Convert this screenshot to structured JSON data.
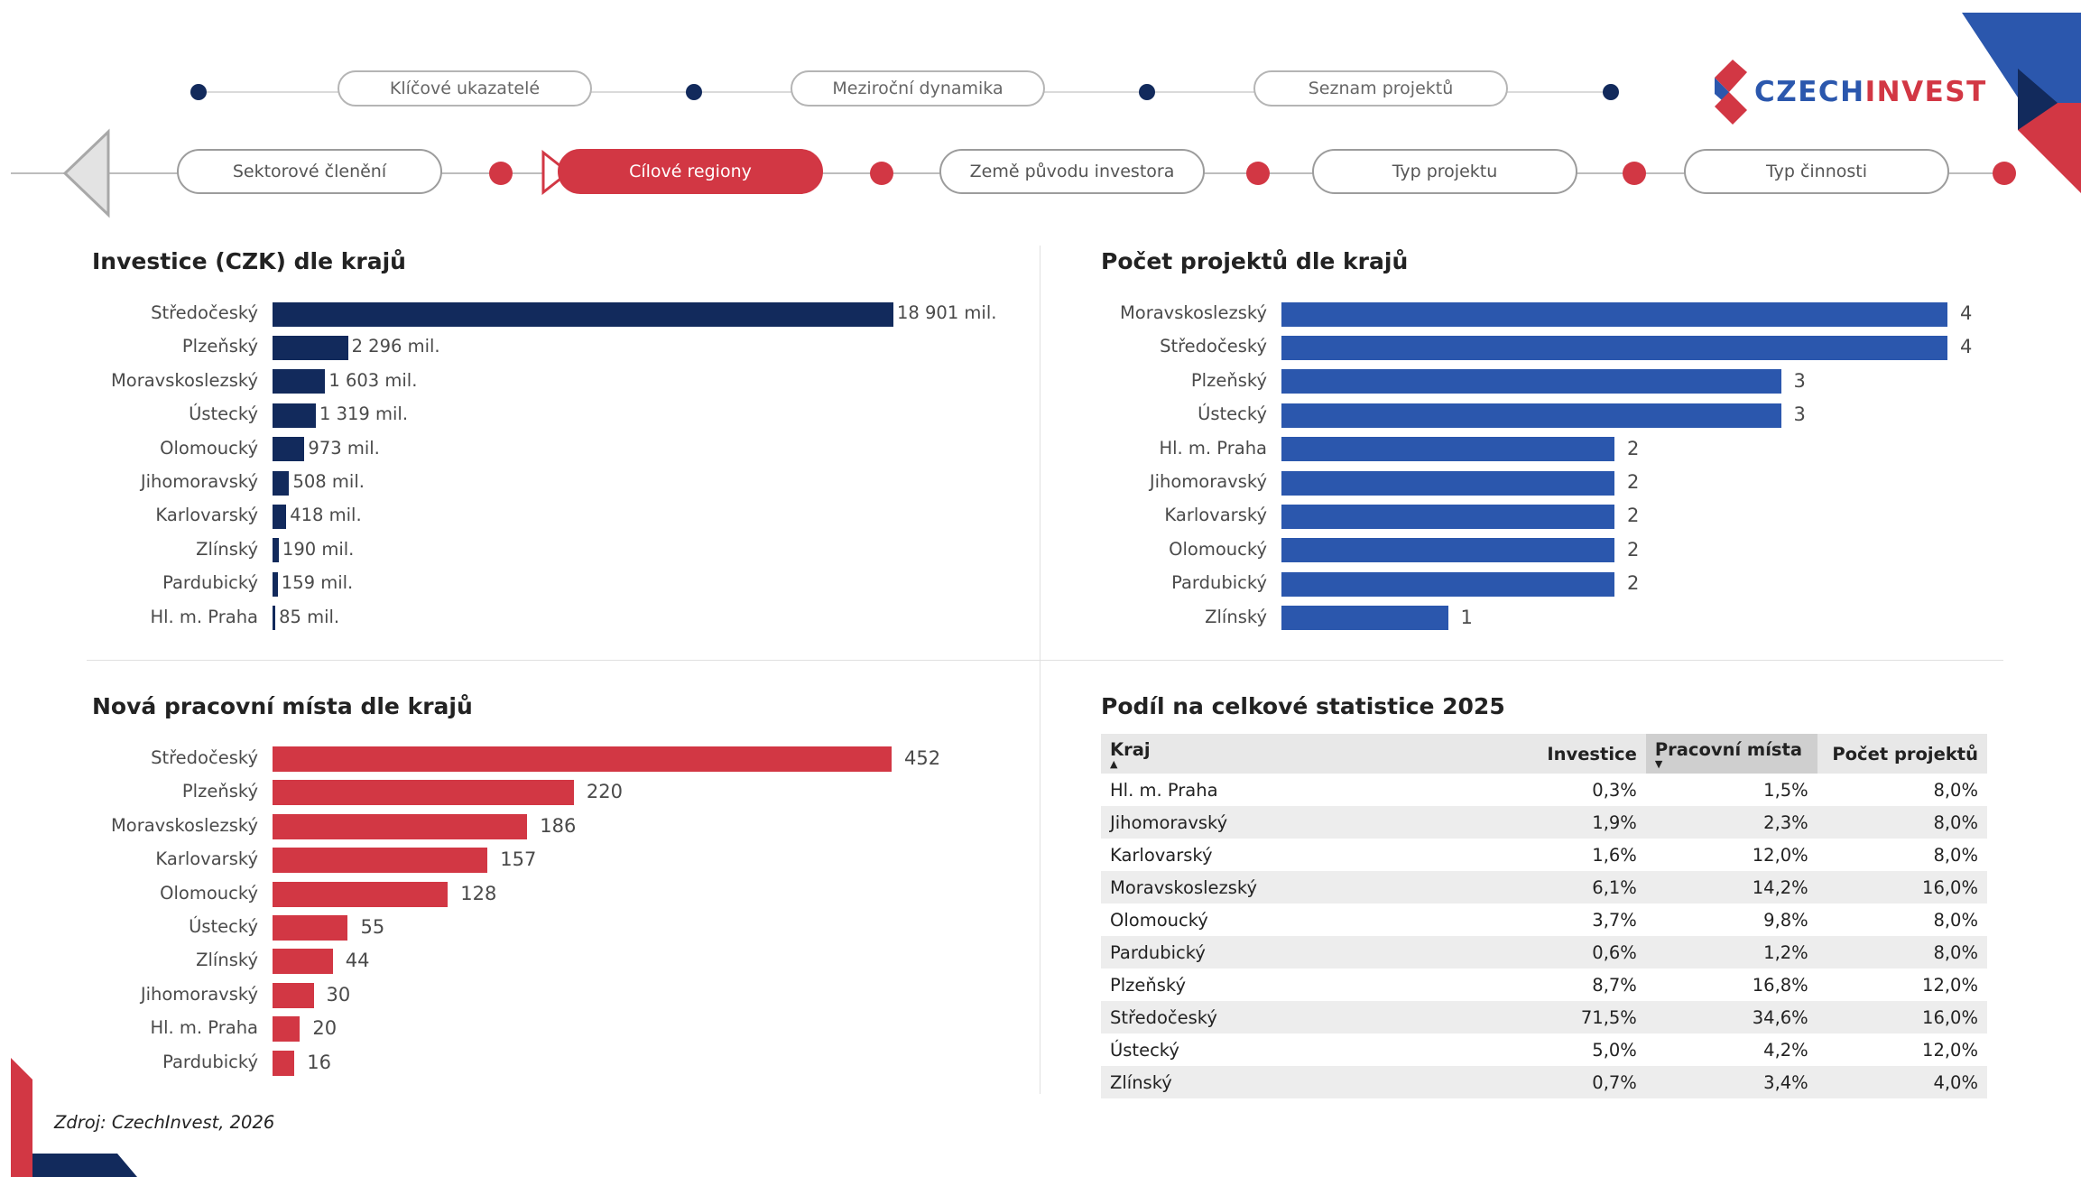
{
  "nav": {
    "top_row": [
      "Klíčové ukazatelé",
      "Meziroční dynamika",
      "Seznam projektů"
    ],
    "bottom_row": [
      "Sektorové členění",
      "Cílové regiony",
      "Země původu investora",
      "Typ projektu",
      "Typ činnosti"
    ],
    "active": "Cílové regiony"
  },
  "logo": {
    "text_part1": "CZECH",
    "text_part2": "INVEST"
  },
  "colors": {
    "navy": "#122a5c",
    "blue": "#2b57ad",
    "red": "#d23744",
    "grey_line": "#cfcfcf"
  },
  "investice": {
    "title": "Investice (CZK) dle krajů",
    "labels": [
      "18 901 mil.",
      "2 296 mil.",
      "1 603 mil.",
      "1 319 mil.",
      "973 mil.",
      "508 mil.",
      "418 mil.",
      "190 mil.",
      "159 mil.",
      "85 mil."
    ]
  },
  "projekty": {
    "title": "Počet projektů dle krajů"
  },
  "mista": {
    "title": "Nová pracovní místa dle krajů"
  },
  "chart_data": [
    {
      "type": "bar",
      "orientation": "horizontal",
      "title": "Investice (CZK) dle krajů",
      "categories": [
        "Středočeský",
        "Plzeňský",
        "Moravskoslezský",
        "Ústecký",
        "Olomoucký",
        "Jihomoravský",
        "Karlovarský",
        "Zlínský",
        "Pardubický",
        "Hl. m. Praha"
      ],
      "values": [
        18901,
        2296,
        1603,
        1319,
        973,
        508,
        418,
        190,
        159,
        85
      ],
      "unit": "mil.",
      "color": "#122a5c"
    },
    {
      "type": "bar",
      "orientation": "horizontal",
      "title": "Počet projektů dle krajů",
      "categories": [
        "Moravskoslezský",
        "Středočeský",
        "Plzeňský",
        "Ústecký",
        "Hl. m. Praha",
        "Jihomoravský",
        "Karlovarský",
        "Olomoucký",
        "Pardubický",
        "Zlínský"
      ],
      "values": [
        4,
        4,
        3,
        3,
        2,
        2,
        2,
        2,
        2,
        1
      ],
      "color": "#2b57ad"
    },
    {
      "type": "bar",
      "orientation": "horizontal",
      "title": "Nová pracovní místa dle krajů",
      "categories": [
        "Středočeský",
        "Plzeňský",
        "Moravskoslezský",
        "Karlovarský",
        "Olomoucký",
        "Ústecký",
        "Zlínský",
        "Jihomoravský",
        "Hl. m. Praha",
        "Pardubický"
      ],
      "values": [
        452,
        220,
        186,
        157,
        128,
        55,
        44,
        30,
        20,
        16
      ],
      "color": "#d23744"
    },
    {
      "type": "table",
      "title": "Podíl na celkové statistice 2025",
      "columns": [
        "Kraj",
        "Investice",
        "Pracovní místa",
        "Počet projektů"
      ],
      "sorted_column": "Pracovní místa",
      "rows": [
        [
          "Hl. m. Praha",
          "0,3%",
          "1,5%",
          "8,0%"
        ],
        [
          "Jihomoravský",
          "1,9%",
          "2,3%",
          "8,0%"
        ],
        [
          "Karlovarský",
          "1,6%",
          "12,0%",
          "8,0%"
        ],
        [
          "Moravskoslezský",
          "6,1%",
          "14,2%",
          "16,0%"
        ],
        [
          "Olomoucký",
          "3,7%",
          "9,8%",
          "8,0%"
        ],
        [
          "Pardubický",
          "0,6%",
          "1,2%",
          "8,0%"
        ],
        [
          "Plzeňský",
          "8,7%",
          "16,8%",
          "12,0%"
        ],
        [
          "Středočeský",
          "71,5%",
          "34,6%",
          "16,0%"
        ],
        [
          "Ústecký",
          "5,0%",
          "4,2%",
          "12,0%"
        ],
        [
          "Zlínský",
          "0,7%",
          "3,4%",
          "4,0%"
        ]
      ]
    }
  ],
  "source": "Zdroj: CzechInvest, 2026"
}
